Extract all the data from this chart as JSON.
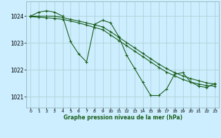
{
  "title": "Graphe pression niveau de la mer (hPa)",
  "background_color": "#cceeff",
  "grid_color": "#aacccc",
  "line_color": "#1a5e1a",
  "marker_color": "#1a5e1a",
  "xlim": [
    -0.5,
    23.5
  ],
  "ylim": [
    1020.6,
    1024.55
  ],
  "yticks": [
    1021,
    1022,
    1023,
    1024
  ],
  "xticks": [
    0,
    1,
    2,
    3,
    4,
    5,
    6,
    7,
    8,
    9,
    10,
    11,
    12,
    13,
    14,
    15,
    16,
    17,
    18,
    19,
    20,
    21,
    22,
    23
  ],
  "series": [
    {
      "x": [
        0,
        1,
        2,
        3,
        4,
        5,
        6,
        7,
        8,
        9,
        10,
        11,
        12,
        13,
        14,
        15,
        16,
        17,
        18,
        19,
        20,
        21,
        22,
        23
      ],
      "y": [
        1024.0,
        1024.15,
        1024.2,
        1024.15,
        1024.0,
        1023.05,
        1022.6,
        1022.3,
        1023.7,
        1023.85,
        1023.75,
        1023.25,
        1022.55,
        1022.05,
        1021.55,
        1021.05,
        1021.05,
        1021.3,
        1021.85,
        1021.9,
        1021.55,
        1021.4,
        1021.35,
        1021.5
      ]
    },
    {
      "x": [
        0,
        1,
        2,
        3,
        4,
        5,
        6,
        7,
        8,
        9,
        10,
        11,
        12,
        13,
        14,
        15,
        16,
        17,
        18,
        19,
        20,
        21,
        22,
        23
      ],
      "y": [
        1024.0,
        1024.0,
        1024.0,
        1024.0,
        1023.95,
        1023.88,
        1023.82,
        1023.75,
        1023.68,
        1023.6,
        1023.42,
        1023.22,
        1023.02,
        1022.82,
        1022.62,
        1022.42,
        1022.22,
        1022.05,
        1021.9,
        1021.78,
        1021.68,
        1021.6,
        1021.52,
        1021.48
      ]
    },
    {
      "x": [
        0,
        1,
        2,
        3,
        4,
        5,
        6,
        7,
        8,
        9,
        10,
        11,
        12,
        13,
        14,
        15,
        16,
        17,
        18,
        19,
        20,
        21,
        22,
        23
      ],
      "y": [
        1023.98,
        1023.96,
        1023.94,
        1023.92,
        1023.88,
        1023.82,
        1023.75,
        1023.67,
        1023.58,
        1023.5,
        1023.3,
        1023.1,
        1022.9,
        1022.7,
        1022.5,
        1022.3,
        1022.1,
        1021.92,
        1021.78,
        1021.65,
        1021.55,
        1021.48,
        1021.42,
        1021.4
      ]
    }
  ]
}
